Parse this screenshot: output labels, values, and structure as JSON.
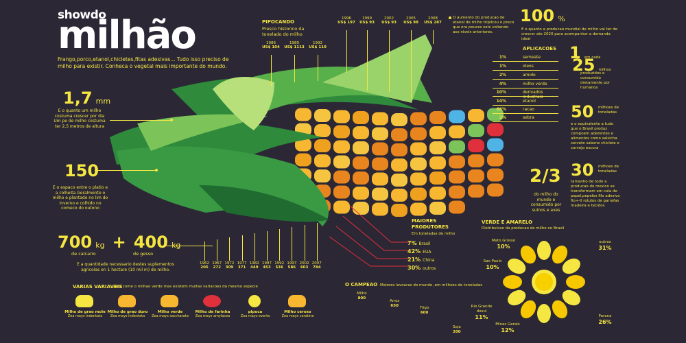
{
  "title": {
    "top": "showdo",
    "main": "milhão"
  },
  "subtitle": "Frango,porco,etanol,chicletes,fitas adesivas... Tudo isso preciso de milho para existir. Conheca o vegetal mais importante do mundo.",
  "colors": {
    "background": "#2b2735",
    "accent": "#f5e642",
    "leaf_dark": "#2f8a3c",
    "leaf_light": "#9ad36a",
    "kernel_yellow": "#f7b731",
    "kernel_orange": "#e9851e",
    "producer_line": "#e0303b"
  },
  "left_stats": {
    "height": {
      "value": "1,7",
      "unit": "mm",
      "desc": "E o quanto um milho costuma crescer por dia Um pe de milho costuma ter 2,5 metros de altura"
    },
    "days": {
      "value": "150",
      "desc": "E o espaco entre o platio e a colheita Geralmente o milho e plantado no lim do inverno e colhido no comeco do outono"
    },
    "water": {
      "value1": "700",
      "unit1": "kg",
      "label1": "de calcario",
      "plus": "+",
      "value2": "400",
      "unit2": "kg",
      "label2": "de gesso",
      "desc": "E a quantidade necessario destes suplementos agricolas en 1 hectare (10 mil m) de milho."
    }
  },
  "pipocando": {
    "title": "PIPOCANDO",
    "desc": "Presco historico da tonelado do milho",
    "years_low": [
      {
        "year": "1986",
        "value": "US$ 104"
      },
      {
        "year": "1989",
        "value": "US$ 1113"
      },
      {
        "year": "1992",
        "value": "US$ 110"
      }
    ],
    "years_high": [
      {
        "year": "1996",
        "value": "US$ 197"
      },
      {
        "year": "1999",
        "value": "US$ 93"
      },
      {
        "year": "2002",
        "value": "US$ 93"
      },
      {
        "year": "2005",
        "value": "US$ 98"
      },
      {
        "year": "2008",
        "value": "US$ 287"
      }
    ],
    "note": "O aumento do producao de etanol de milho tripilcou o preco que era pouces ests voltando aos niveis anteriores."
  },
  "hundred": {
    "value": "100",
    "unit": "%",
    "desc": "E o quanto a producao mundial de milho vai ter de crescer ate 2020 para acompanhor a demanda ideal"
  },
  "aplicacoes": {
    "title": "APLICACOES",
    "items": [
      {
        "pct": "1%",
        "name": "semeate"
      },
      {
        "pct": "1%",
        "name": "oleos"
      },
      {
        "pct": "2%",
        "name": "amido"
      },
      {
        "pct": "4%",
        "name": "milho verde"
      },
      {
        "pct": "10%",
        "name": "derivados industrais"
      },
      {
        "pct": "14%",
        "name": "etanol"
      },
      {
        "pct": "66%",
        "name": "racao"
      },
      {
        "pct": "2%",
        "name": "sebra"
      }
    ]
  },
  "ratio": {
    "a": "1",
    "a_text": "em cada",
    "b": "25",
    "b_unit": "milhos",
    "desc": "produzidos e consumido dretamente por humanos"
  },
  "fifty": {
    "value": "50",
    "unit": "milhoes de toneladas",
    "desc": "e o equivalente a tudo que o Brasil produz compoem aderentes e alimentos como salsicha sorvete sabone chiclete e corvejo escura"
  },
  "thirty": {
    "value": "30",
    "unit": "milhoes de toneladas",
    "desc": "tamanho de todo a producao do mexico se transformam em cola de papel,pepeles filo adesivo fio+-ll rotulos de garrafas madeira e tecidos"
  },
  "two_thirds": {
    "value": "2/3",
    "desc": "do milho do mundo e consumido por suinos e aves"
  },
  "harvest_years": [
    {
      "year": "1962",
      "value": "205"
    },
    {
      "year": "1967",
      "value": "272"
    },
    {
      "year": "1972",
      "value": "309"
    },
    {
      "year": "1977",
      "value": "371"
    },
    {
      "year": "1982",
      "value": "449"
    },
    {
      "year": "1987",
      "value": "453"
    },
    {
      "year": "1992",
      "value": "536"
    },
    {
      "year": "1997",
      "value": "586"
    },
    {
      "year": "2002",
      "value": "603"
    },
    {
      "year": "2007",
      "value": "784"
    }
  ],
  "producers": {
    "title": "MAIORES PRODUTORES",
    "desc": "Em toneladas de milho",
    "items": [
      {
        "pct": "7%",
        "name": "Brasil"
      },
      {
        "pct": "42%",
        "name": "EUA"
      },
      {
        "pct": "21%",
        "name": "China"
      },
      {
        "pct": "30%",
        "name": "outros"
      }
    ]
  },
  "verde_amarelo": {
    "title": "VERDE E AMARELO",
    "desc": "Distribuicao da producao de milho no Brasil",
    "items": [
      {
        "name": "Mato Grosso",
        "pct": "10%"
      },
      {
        "name": "Sao Paulo",
        "pct": "10%"
      },
      {
        "name": "Rio Grande dosul",
        "pct": "11%"
      },
      {
        "name": "Minas Gerais",
        "pct": "12%"
      },
      {
        "name": "Parana",
        "pct": "26%"
      },
      {
        "name": "outros",
        "pct": "31%"
      }
    ]
  },
  "campeao": {
    "title": "O CAMPEAO",
    "desc": "Maiores lavouras do mundo ,em milhoes de toneladas",
    "items": [
      {
        "name": "Milho",
        "value": "800"
      },
      {
        "name": "Arroz",
        "value": "650"
      },
      {
        "name": "Trigo",
        "value": "600"
      },
      {
        "name": "Soja",
        "value": "200"
      }
    ]
  },
  "variedades": {
    "title": "VARIAS VARIAVEIS",
    "desc": "voce come o milhao verde mas existem muitas variacoes da mesmo especie",
    "items": [
      {
        "name": "Milho de grao mole",
        "sci": "Zea mays indentata",
        "color": "#f5e642"
      },
      {
        "name": "Milho de grao duro",
        "sci": "Zea mays indentata",
        "color": "#f7b731"
      },
      {
        "name": "Milho verde",
        "sci": "Zea mays saccharata",
        "color": "#f7b731"
      },
      {
        "name": "Milho de farinha",
        "sci": "Zea mays amylacea",
        "color": "#e0303b"
      },
      {
        "name": "pipoca",
        "sci": "Zea mays everta",
        "color": "#f5e642"
      },
      {
        "name": "Milho ceroso",
        "sci": "Zea mays ceratina",
        "color": "#f7b731"
      }
    ]
  }
}
